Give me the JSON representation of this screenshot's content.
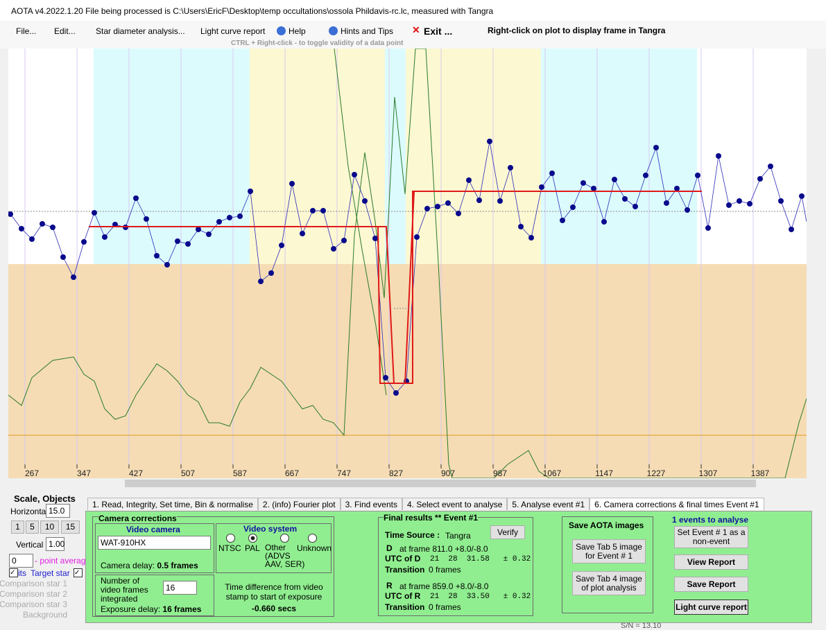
{
  "window": {
    "title": "AOTA v4.2022.1.20   File being processed is C:\\Users\\EricF\\Desktop\\temp occultations\\ossola Phildavis-rc.lc, measured with Tangra"
  },
  "menu": {
    "items": [
      "File...",
      "Edit...",
      "Star diameter analysis...",
      "Light curve report",
      "Help",
      "Hints and Tips",
      "Exit ..."
    ],
    "right_click_hint": "Right-click on plot to display frame in Tangra",
    "ctrl_hint": "CTRL + Right-click  -  to toggle validity of a data point"
  },
  "plot": {
    "x_tick_labels": [
      "267",
      "347",
      "427",
      "507",
      "587",
      "667",
      "747",
      "827",
      "907",
      "987",
      "1067",
      "1147",
      "1227",
      "1307",
      "1387"
    ]
  },
  "left_panel": {
    "heading": "Scale,  Objects",
    "horizontal_label": "Horizontal",
    "horizontal_value": "15.0",
    "buttons": [
      "1",
      "5",
      "10",
      "15"
    ],
    "vertical_label": "Vertical",
    "vertical_value": "1.00",
    "average_value": "0",
    "average_label": "- point average",
    "checks": [
      "its",
      "Target star"
    ],
    "objects": [
      "Comparison star 1",
      "Comparison star 2",
      "Comparison star 3",
      "Background"
    ]
  },
  "tabs": [
    "1. Read, Integrity, Set time, Bin & normalise",
    "2. (info)  Fourier plot",
    "3. Find events",
    "4. Select event to analyse",
    "5. Analyse event #1",
    "6. Camera corrections & final times Event #1"
  ],
  "camera": {
    "group": "Camera corrections",
    "video_camera": "Video camera",
    "camera_model": "WAT-910HX",
    "camera_delay_label": "Camera delay: ",
    "camera_delay_value": "0.5 frames",
    "video_system": "Video system",
    "radios": [
      "NTSC",
      "PAL",
      "Other\n(ADVS\nAAV, SER)",
      "Unknown"
    ],
    "frames_label": "Number of video frames integrated",
    "frames_value": "16",
    "exposure_label": "Exposure delay: ",
    "exposure_value": "16 frames",
    "time_diff_label": "Time difference from video stamp to start of exposure",
    "time_diff_value": "-0.660 secs"
  },
  "results": {
    "heading": "Final results  **  Event #1",
    "time_source_label": "Time Source :",
    "time_source": "Tangra",
    "verify": "Verify",
    "d_label": "D",
    "d_frame": "at frame 811.0  +8.0/-8.0",
    "utc_d_label": "UTC of D",
    "utc_d": "21  28  31.58   ± 0.32",
    "transition_label": "Transition",
    "d_transition": "0 frames",
    "r_label": "R",
    "r_frame": "at frame 859.0  +8.0/-8.0",
    "utc_r_label": "UTC of R",
    "utc_r": "21  28  33.50   ± 0.32",
    "r_transition": "0 frames"
  },
  "save": {
    "heading": "Save AOTA images",
    "tab5": "Save Tab 5 image for Event # 1",
    "tab4": "Save Tab 4 image of plot analysis"
  },
  "events": {
    "count": "1  events to analyse",
    "set_non_event": "Set Event # 1 as a non-event",
    "view_report": "View Report",
    "save_report": "Save Report",
    "light_curve_report": "Light curve report"
  },
  "footer": {
    "sn": "S/N = 13.10"
  }
}
